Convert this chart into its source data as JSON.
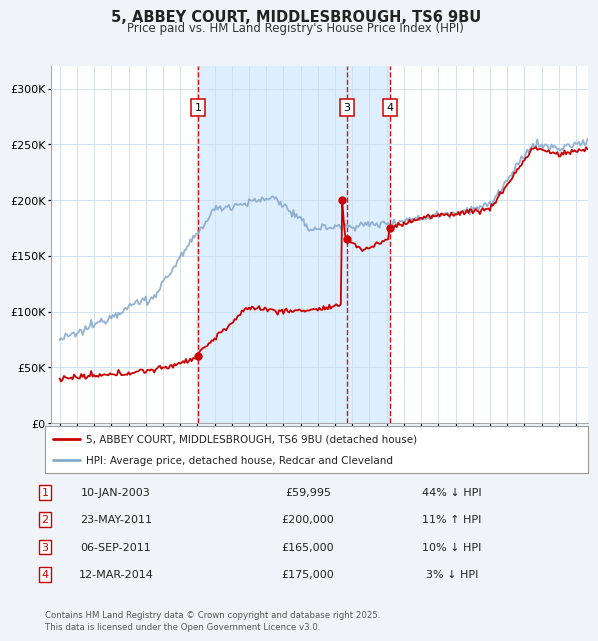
{
  "title": "5, ABBEY COURT, MIDDLESBROUGH, TS6 9BU",
  "subtitle": "Price paid vs. HM Land Registry's House Price Index (HPI)",
  "background_color": "#f0f4f8",
  "plot_bg_color": "#ffffff",
  "transactions": [
    {
      "num": 1,
      "date_str": "10-JAN-2003",
      "date_x": 2003.03,
      "price": 59995,
      "label": "44% ↓ HPI",
      "on_chart": true
    },
    {
      "num": 2,
      "date_str": "23-MAY-2011",
      "date_x": 2011.38,
      "price": 200000,
      "label": "11% ↑ HPI",
      "on_chart": false
    },
    {
      "num": 3,
      "date_str": "06-SEP-2011",
      "date_x": 2011.68,
      "price": 165000,
      "label": "10% ↓ HPI",
      "on_chart": true
    },
    {
      "num": 4,
      "date_str": "12-MAR-2014",
      "date_x": 2014.19,
      "price": 175000,
      "label": "3% ↓ HPI",
      "on_chart": true
    }
  ],
  "legend_labels": [
    "5, ABBEY COURT, MIDDLESBROUGH, TS6 9BU (detached house)",
    "HPI: Average price, detached house, Redcar and Cleveland"
  ],
  "footer": "Contains HM Land Registry data © Crown copyright and database right 2025.\nThis data is licensed under the Open Government Licence v3.0.",
  "ylim": [
    0,
    320000
  ],
  "yticks": [
    0,
    50000,
    100000,
    150000,
    200000,
    250000,
    300000
  ],
  "ytick_labels": [
    "£0",
    "£50K",
    "£100K",
    "£150K",
    "£200K",
    "£250K",
    "£300K"
  ],
  "xlim_start": 1994.5,
  "xlim_end": 2025.7,
  "transaction_color": "#cc0000",
  "hpi_color": "#88aacc",
  "shaded_color": "#ddeeff",
  "shaded_region_start": 2003.03,
  "shaded_region_end": 2014.19
}
